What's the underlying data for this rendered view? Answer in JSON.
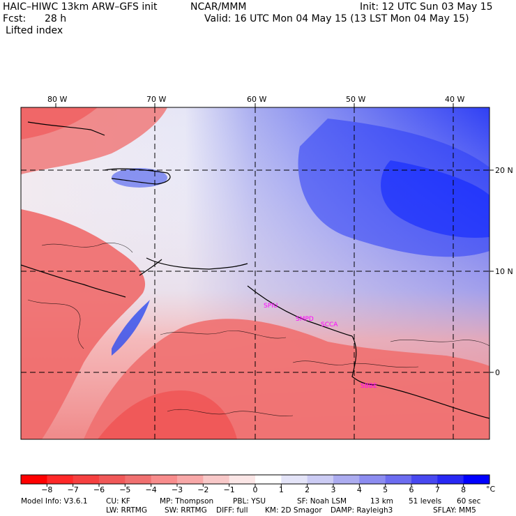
{
  "header": {
    "model_title": "HAIC–HIWC 13km ARW–GFS init",
    "org": "NCAR/MMM",
    "init": "Init: 12 UTC Sun 03 May 15",
    "fcst_label": "Fcst:",
    "fcst_value": "28 h",
    "valid": "Valid: 16 UTC Mon 04 May 15 (13 LST Mon 04 May 15)",
    "field": "Lifted index"
  },
  "map": {
    "lon_labels": [
      "80 W",
      "70 W",
      "60 W",
      "50 W",
      "40 W"
    ],
    "lat_labels": [
      "20 N",
      "10 N",
      "0"
    ],
    "stations": [
      "SPIU",
      "SMPD",
      "SCCA",
      "SBBE"
    ],
    "colors": {
      "negative": "#ee2c2c",
      "positive": "#0018ff",
      "station": "#ff00ff"
    }
  },
  "colorbar": {
    "ticks": [
      "−8",
      "−7",
      "−6",
      "−5",
      "−4",
      "−3",
      "−2",
      "−1",
      "0",
      "1",
      "2",
      "3",
      "4",
      "5",
      "6",
      "7",
      "8"
    ],
    "unit": "°C",
    "colors": [
      "#ff0000",
      "#ff2828",
      "#f64040",
      "#f05858",
      "#f07070",
      "#f88c8c",
      "#f8a8a8",
      "#f8c8c8",
      "#fbe6e6",
      "#ffffff",
      "#e4e4f8",
      "#ccccf4",
      "#acacf0",
      "#8c8cf0",
      "#6c6cf0",
      "#4848f0",
      "#2828f4",
      "#0000ff"
    ]
  },
  "footer": {
    "line1": [
      "Model Info: V3.6.1",
      "CU: KF",
      "MP: Thompson",
      "PBL: YSU",
      "SF: Noah LSM",
      "13 km",
      "51 levels",
      "60 sec"
    ],
    "line2": [
      "LW: RRTMG",
      "SW: RRTMG",
      "DIFF: full",
      "KM: 2D Smagor",
      "DAMP: Rayleigh3",
      "SFLAY: MM5"
    ]
  }
}
